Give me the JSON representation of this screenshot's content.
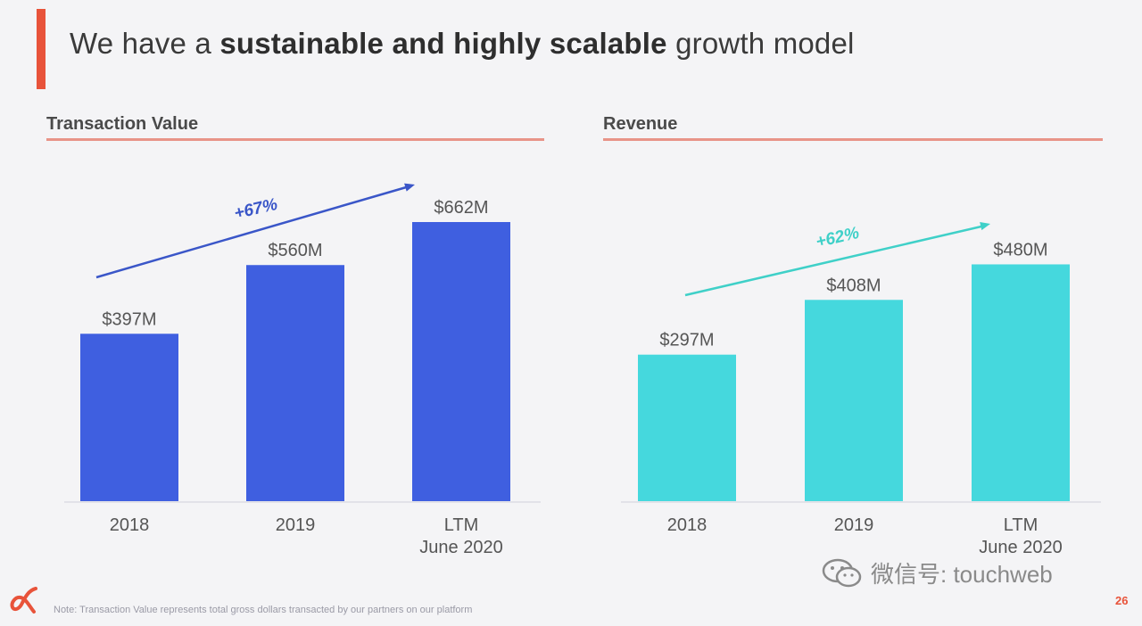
{
  "header": {
    "title_prefix": "We have a ",
    "title_bold": "sustainable and highly scalable",
    "title_suffix": " growth model"
  },
  "chart_data": [
    {
      "type": "bar",
      "title": "Transaction Value",
      "categories": [
        "2018",
        "2019",
        "LTM\nJune 2020"
      ],
      "values": [
        397,
        560,
        662
      ],
      "value_labels": [
        "$397M",
        "$560M",
        "$662M"
      ],
      "unit": "$M",
      "annotation": "+67%",
      "color": "#3f5fe0",
      "arrow_color": "#3a56c8"
    },
    {
      "type": "bar",
      "title": "Revenue",
      "categories": [
        "2018",
        "2019",
        "LTM\nJune 2020"
      ],
      "values": [
        297,
        408,
        480
      ],
      "value_labels": [
        "$297M",
        "$408M",
        "$480M"
      ],
      "unit": "$M",
      "annotation": "+62%",
      "color": "#45d8dd",
      "arrow_color": "#3fd0c8"
    }
  ],
  "footer": {
    "note": "Note: Transaction Value represents total gross dollars transacted by our partners on our platform",
    "watermark": "微信号: touchweb",
    "page_number": "26"
  },
  "colors": {
    "accent": "#e8533a",
    "rule": "#e89488"
  }
}
